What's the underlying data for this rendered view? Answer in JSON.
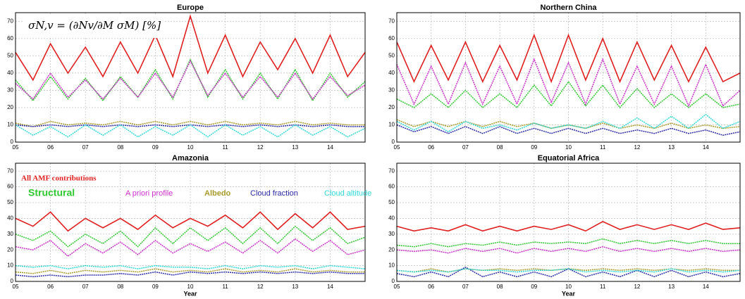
{
  "annotation": "σN,v = (∂Nv/∂M σM) [%]",
  "chart_data": [
    {
      "type": "line",
      "title": "Europe",
      "x": [
        2005,
        2005.5,
        2006,
        2006.5,
        2007,
        2007.5,
        2008,
        2008.5,
        2009,
        2009.5,
        2010,
        2010.5,
        2011,
        2011.5,
        2012,
        2012.5,
        2013,
        2013.5,
        2014,
        2014.5,
        2015
      ],
      "xlim": [
        2005,
        2015
      ],
      "xticks": [
        {
          "value": 2005,
          "label": "05"
        },
        {
          "value": 2006,
          "label": "06"
        },
        {
          "value": 2007,
          "label": "07"
        },
        {
          "value": 2008,
          "label": "08"
        },
        {
          "value": 2009,
          "label": "09"
        },
        {
          "value": 2010,
          "label": "10"
        },
        {
          "value": 2011,
          "label": "11"
        },
        {
          "value": 2012,
          "label": "12"
        },
        {
          "value": 2013,
          "label": "13"
        },
        {
          "value": 2014,
          "label": "14"
        }
      ],
      "ylim": [
        0,
        75
      ],
      "yticks": [
        0,
        10,
        20,
        30,
        40,
        50,
        60,
        70
      ],
      "grid": true,
      "series": [
        {
          "color": "#e02020",
          "values": [
            52,
            36,
            57,
            40,
            55,
            38,
            58,
            40,
            62,
            38,
            73,
            40,
            62,
            38,
            58,
            42,
            60,
            40,
            62,
            38,
            52
          ]
        },
        {
          "color": "#30c830",
          "values": [
            36,
            24,
            38,
            25,
            37,
            24,
            38,
            26,
            42,
            25,
            48,
            26,
            42,
            25,
            40,
            25,
            42,
            24,
            40,
            26,
            35
          ]
        },
        {
          "color": "#cc30cc",
          "values": [
            34,
            25,
            40,
            26,
            36,
            25,
            37,
            26,
            40,
            26,
            47,
            27,
            40,
            26,
            38,
            26,
            40,
            25,
            38,
            27,
            33
          ]
        },
        {
          "color": "#a89a2a",
          "values": [
            11,
            9,
            12,
            10,
            11,
            10,
            12,
            10,
            12,
            10,
            12,
            10,
            12,
            10,
            11,
            10,
            12,
            10,
            11,
            10,
            10
          ]
        },
        {
          "color": "#2a2aa8",
          "values": [
            10,
            9,
            10,
            9,
            10,
            9,
            10,
            9,
            10,
            9,
            10,
            9,
            10,
            9,
            10,
            9,
            10,
            9,
            10,
            9,
            9
          ]
        },
        {
          "color": "#30d8d8",
          "values": [
            10,
            4,
            9,
            3,
            10,
            4,
            10,
            3,
            9,
            4,
            10,
            3,
            10,
            4,
            9,
            3,
            10,
            4,
            9,
            3,
            8
          ]
        }
      ]
    },
    {
      "type": "line",
      "title": "Northern China",
      "x": [
        2005,
        2005.5,
        2006,
        2006.5,
        2007,
        2007.5,
        2008,
        2008.5,
        2009,
        2009.5,
        2010,
        2010.5,
        2011,
        2011.5,
        2012,
        2012.5,
        2013,
        2013.5,
        2014,
        2014.5,
        2015
      ],
      "xlim": [
        2005,
        2015
      ],
      "xticks": [
        {
          "value": 2005,
          "label": "05"
        },
        {
          "value": 2006,
          "label": "06"
        },
        {
          "value": 2007,
          "label": "07"
        },
        {
          "value": 2008,
          "label": "08"
        },
        {
          "value": 2009,
          "label": "09"
        },
        {
          "value": 2010,
          "label": "10"
        },
        {
          "value": 2011,
          "label": "11"
        },
        {
          "value": 2012,
          "label": "12"
        },
        {
          "value": 2013,
          "label": "13"
        },
        {
          "value": 2014,
          "label": "14"
        }
      ],
      "ylim": [
        0,
        75
      ],
      "yticks": [
        0,
        10,
        20,
        30,
        40,
        50,
        60,
        70
      ],
      "grid": true,
      "series": [
        {
          "color": "#e02020",
          "values": [
            58,
            35,
            56,
            36,
            58,
            35,
            56,
            36,
            62,
            35,
            62,
            36,
            60,
            35,
            58,
            36,
            56,
            35,
            55,
            35,
            40
          ]
        },
        {
          "color": "#30c830",
          "values": [
            25,
            20,
            28,
            20,
            30,
            20,
            28,
            20,
            33,
            21,
            35,
            21,
            33,
            20,
            31,
            20,
            28,
            20,
            28,
            20,
            22
          ]
        },
        {
          "color": "#cc30cc",
          "values": [
            45,
            22,
            44,
            22,
            46,
            22,
            44,
            22,
            48,
            23,
            46,
            22,
            48,
            22,
            44,
            22,
            44,
            21,
            45,
            21,
            30
          ]
        },
        {
          "color": "#a89a2a",
          "values": [
            13,
            9,
            12,
            9,
            12,
            9,
            12,
            9,
            11,
            8,
            10,
            8,
            11,
            8,
            10,
            8,
            11,
            8,
            10,
            8,
            9
          ]
        },
        {
          "color": "#2a2aa8",
          "values": [
            10,
            6,
            9,
            5,
            9,
            5,
            9,
            5,
            8,
            5,
            8,
            5,
            8,
            5,
            7,
            5,
            8,
            5,
            7,
            4,
            6
          ]
        },
        {
          "color": "#30d8d8",
          "values": [
            12,
            7,
            12,
            6,
            12,
            8,
            10,
            7,
            11,
            8,
            10,
            8,
            12,
            8,
            14,
            8,
            15,
            8,
            16,
            8,
            12
          ]
        }
      ]
    },
    {
      "type": "line",
      "title": "Amazonia",
      "xlabel": "Year",
      "legend": true,
      "x": [
        2005,
        2005.5,
        2006,
        2006.5,
        2007,
        2007.5,
        2008,
        2008.5,
        2009,
        2009.5,
        2010,
        2010.5,
        2011,
        2011.5,
        2012,
        2012.5,
        2013,
        2013.5,
        2014,
        2014.5,
        2015
      ],
      "xlim": [
        2005,
        2015
      ],
      "xticks": [
        {
          "value": 2005,
          "label": "05"
        },
        {
          "value": 2006,
          "label": "06"
        },
        {
          "value": 2007,
          "label": "07"
        },
        {
          "value": 2008,
          "label": "08"
        },
        {
          "value": 2009,
          "label": "09"
        },
        {
          "value": 2010,
          "label": "10"
        },
        {
          "value": 2011,
          "label": "11"
        },
        {
          "value": 2012,
          "label": "12"
        },
        {
          "value": 2013,
          "label": "13"
        },
        {
          "value": 2014,
          "label": "14"
        }
      ],
      "ylim": [
        0,
        75
      ],
      "yticks": [
        0,
        10,
        20,
        30,
        40,
        50,
        60,
        70
      ],
      "grid": true,
      "series": [
        {
          "name": "All AMF contributions",
          "color": "#e02020",
          "values": [
            40,
            35,
            44,
            32,
            40,
            34,
            40,
            33,
            42,
            34,
            40,
            35,
            42,
            34,
            44,
            33,
            43,
            34,
            44,
            33,
            35
          ]
        },
        {
          "name": "Structural",
          "color": "#30c830",
          "values": [
            30,
            26,
            32,
            22,
            30,
            24,
            32,
            22,
            34,
            24,
            34,
            26,
            34,
            24,
            34,
            24,
            35,
            26,
            34,
            24,
            28
          ]
        },
        {
          "name": "A priori profile",
          "color": "#cc30cc",
          "values": [
            22,
            20,
            26,
            16,
            24,
            18,
            25,
            17,
            26,
            18,
            24,
            19,
            25,
            18,
            26,
            18,
            27,
            19,
            26,
            17,
            20
          ]
        },
        {
          "name": "Albedo",
          "color": "#a89a2a",
          "values": [
            6,
            5,
            7,
            5,
            7,
            6,
            7,
            6,
            8,
            6,
            7,
            6,
            8,
            6,
            7,
            6,
            8,
            6,
            7,
            6,
            6
          ]
        },
        {
          "name": "Cloud fraction",
          "color": "#2a2aa8",
          "values": [
            4,
            3,
            4,
            3,
            4,
            4,
            5,
            4,
            6,
            4,
            6,
            5,
            6,
            5,
            6,
            5,
            6,
            5,
            6,
            5,
            5
          ]
        },
        {
          "name": "Cloud altitude",
          "color": "#30d8d8",
          "values": [
            10,
            9,
            10,
            8,
            10,
            9,
            10,
            8,
            10,
            9,
            9,
            8,
            10,
            8,
            10,
            9,
            10,
            8,
            10,
            9,
            8
          ]
        }
      ]
    },
    {
      "type": "line",
      "title": "Equatorial Africa",
      "xlabel": "Year",
      "x": [
        2005,
        2005.5,
        2006,
        2006.5,
        2007,
        2007.5,
        2008,
        2008.5,
        2009,
        2009.5,
        2010,
        2010.5,
        2011,
        2011.5,
        2012,
        2012.5,
        2013,
        2013.5,
        2014,
        2014.5,
        2015
      ],
      "xlim": [
        2005,
        2015
      ],
      "xticks": [
        {
          "value": 2005,
          "label": "05"
        },
        {
          "value": 2006,
          "label": "06"
        },
        {
          "value": 2007,
          "label": "07"
        },
        {
          "value": 2008,
          "label": "08"
        },
        {
          "value": 2009,
          "label": "09"
        },
        {
          "value": 2010,
          "label": "10"
        },
        {
          "value": 2011,
          "label": "11"
        },
        {
          "value": 2012,
          "label": "12"
        },
        {
          "value": 2013,
          "label": "13"
        },
        {
          "value": 2014,
          "label": "14"
        }
      ],
      "ylim": [
        0,
        75
      ],
      "yticks": [
        0,
        10,
        20,
        30,
        40,
        50,
        60,
        70
      ],
      "grid": true,
      "series": [
        {
          "color": "#e02020",
          "values": [
            35,
            32,
            34,
            32,
            36,
            32,
            35,
            32,
            35,
            33,
            36,
            32,
            38,
            33,
            36,
            33,
            36,
            33,
            37,
            33,
            34
          ]
        },
        {
          "color": "#30c830",
          "values": [
            23,
            22,
            24,
            22,
            24,
            23,
            25,
            23,
            25,
            24,
            25,
            24,
            27,
            24,
            26,
            24,
            26,
            24,
            26,
            24,
            24
          ]
        },
        {
          "color": "#cc30cc",
          "values": [
            20,
            19,
            20,
            18,
            21,
            19,
            21,
            18,
            21,
            19,
            21,
            19,
            22,
            19,
            21,
            19,
            21,
            19,
            21,
            19,
            20
          ]
        },
        {
          "color": "#a89a2a",
          "values": [
            7,
            6,
            8,
            6,
            8,
            7,
            8,
            7,
            8,
            7,
            8,
            7,
            8,
            7,
            8,
            7,
            8,
            7,
            8,
            7,
            7
          ]
        },
        {
          "color": "#2a2aa8",
          "values": [
            5,
            3,
            6,
            3,
            9,
            3,
            6,
            3,
            6,
            3,
            8,
            3,
            6,
            3,
            7,
            3,
            7,
            3,
            6,
            3,
            5
          ]
        },
        {
          "color": "#30d8d8",
          "values": [
            7,
            6,
            7,
            6,
            8,
            7,
            7,
            6,
            7,
            7,
            8,
            6,
            7,
            6,
            7,
            6,
            8,
            6,
            7,
            6,
            7
          ]
        }
      ]
    }
  ]
}
